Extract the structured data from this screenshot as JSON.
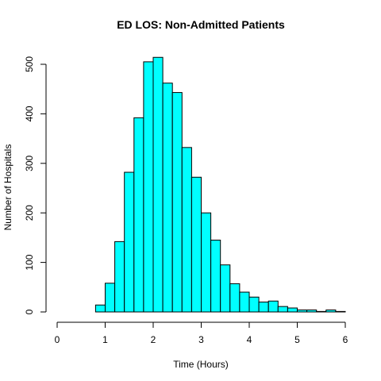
{
  "chart_data": {
    "type": "bar",
    "title": "ED LOS: Non-Admitted Patients",
    "xlabel": "Time (Hours)",
    "ylabel": "Number of Hospitals",
    "xlim": [
      0,
      6.2
    ],
    "ylim": [
      0,
      520
    ],
    "x_ticks": [
      "0",
      "1",
      "2",
      "3",
      "4",
      "5",
      "6"
    ],
    "y_ticks": [
      "0",
      "100",
      "200",
      "300",
      "400",
      "500"
    ],
    "bin_edges": [
      0.8,
      1.0,
      1.2,
      1.4,
      1.6,
      1.8,
      2.0,
      2.2,
      2.4,
      2.6,
      2.8,
      3.0,
      3.2,
      3.4,
      3.6,
      3.8,
      4.0,
      4.2,
      4.4,
      4.6,
      4.8,
      5.0,
      5.2,
      5.4,
      5.6,
      5.8,
      6.0
    ],
    "values": [
      14,
      58,
      142,
      282,
      392,
      505,
      514,
      462,
      443,
      332,
      272,
      200,
      145,
      95,
      57,
      40,
      30,
      20,
      22,
      11,
      8,
      4,
      4,
      1,
      4,
      1
    ],
    "bar_color": "#00ffff",
    "grid": false
  }
}
